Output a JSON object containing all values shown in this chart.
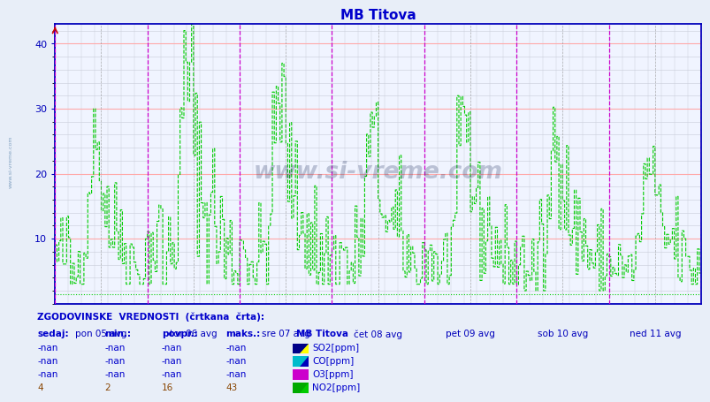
{
  "title": "MB Titova",
  "title_color": "#0000cc",
  "bg_color": "#f0f4ff",
  "plot_bg_color": "#f0f4ff",
  "outer_bg_color": "#e8eef8",
  "grid_major_color": "#ffaaaa",
  "grid_minor_color": "#c8ccd8",
  "no2_color": "#00cc00",
  "vline_color": "#cc00cc",
  "vline_dashed_color": "#888888",
  "hline_color": "#00cc00",
  "axis_color": "#0000bb",
  "tick_color": "#0000bb",
  "watermark": "www.si-vreme.com",
  "watermark_color": "#1a2a5a",
  "watermark_alpha": 0.25,
  "side_text": "www.si-vreme.com",
  "side_text_color": "#7799bb",
  "red_color": "#cc0000",
  "ylim_max": 43,
  "yticks": [
    10,
    20,
    30,
    40
  ],
  "day_labels": [
    "pon 05 avg",
    "tor 06 avg",
    "sre 07 avg",
    "čet 08 avg",
    "pet 09 avg",
    "sob 10 avg",
    "ned 11 avg"
  ],
  "n_days": 7,
  "pts_per_day": 336,
  "footer_title": "ZGODOVINSKE  VREDNOSTI  (črtkana  črta):",
  "footer_col_headers": [
    "sedaj:",
    "min.:",
    "povpr.:",
    "maks.:",
    "MB Titova"
  ],
  "row_vals": [
    [
      "-nan",
      "-nan",
      "-nan",
      "-nan"
    ],
    [
      "-nan",
      "-nan",
      "-nan",
      "-nan"
    ],
    [
      "-nan",
      "-nan",
      "-nan",
      "-nan"
    ],
    [
      "4",
      "2",
      "16",
      "43"
    ]
  ],
  "row_labels": [
    "SO2[ppm]",
    "CO[ppm]",
    "O3[ppm]",
    "NO2[ppm]"
  ],
  "icon_colors": [
    [
      "#000088",
      "#ffff00"
    ],
    [
      "#00bbcc",
      "#0000bb"
    ],
    [
      "#cc00cc",
      "#cc00cc"
    ],
    [
      "#00aa00",
      "#00cc00"
    ]
  ],
  "day_peaks": [
    30,
    43,
    38,
    31,
    32,
    32,
    25
  ],
  "day_bases": [
    3,
    3,
    3,
    3,
    3,
    2,
    3
  ]
}
